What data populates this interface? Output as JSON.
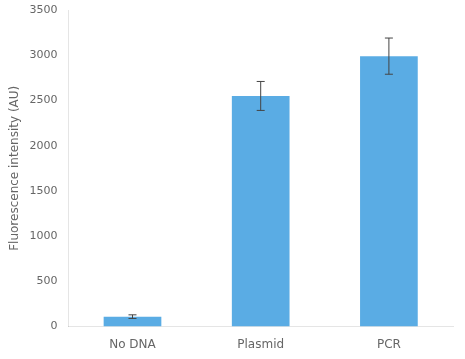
{
  "chart_data": {
    "type": "bar",
    "categories": [
      "No DNA",
      "Plasmid",
      "PCR"
    ],
    "values": [
      110,
      2550,
      2990
    ],
    "errors": [
      20,
      160,
      200
    ],
    "color": "#5AACE4",
    "ylabel": "Fluorescence intensity (AU)",
    "ylim": [
      0,
      3500
    ],
    "yticks": [
      0,
      500,
      1000,
      1500,
      2000,
      2500,
      3000,
      3500
    ],
    "grid": false
  }
}
